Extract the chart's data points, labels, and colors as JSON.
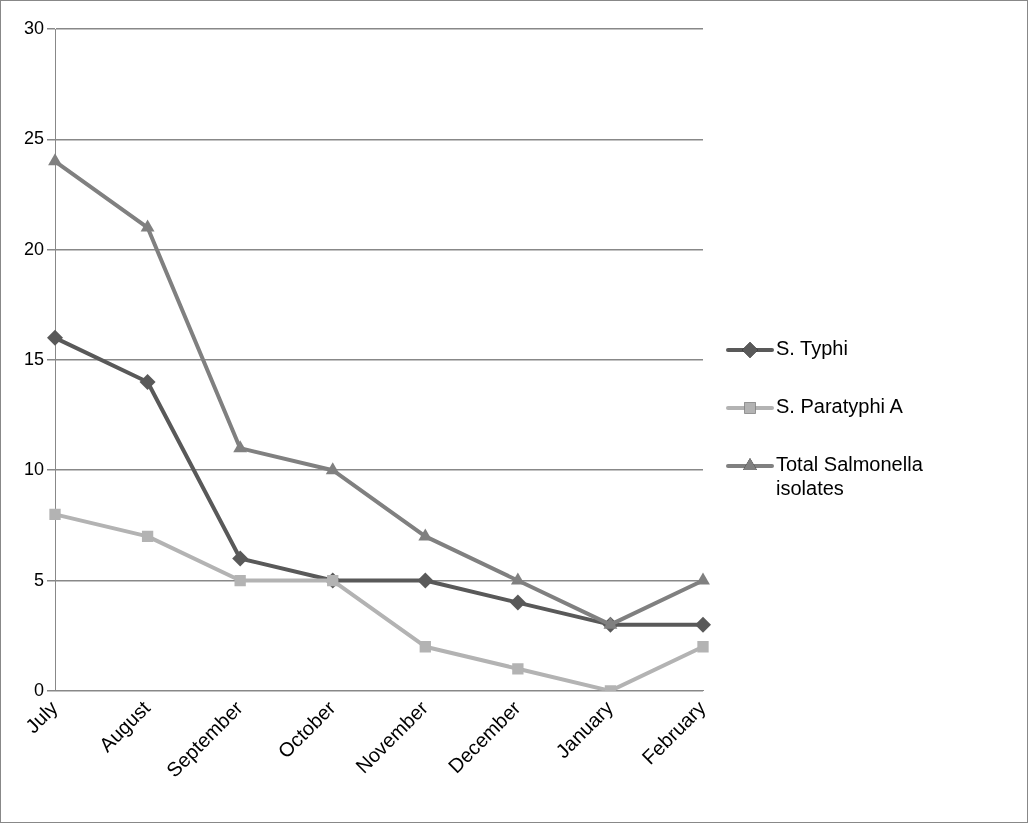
{
  "chart_data": {
    "type": "line",
    "categories": [
      "July",
      "August",
      "September",
      "October",
      "November",
      "December",
      "January",
      "February"
    ],
    "series": [
      {
        "name": "S. Typhi",
        "color": "#595959",
        "marker": "diamond",
        "values": [
          16,
          14,
          6,
          5,
          5,
          4,
          3,
          3
        ]
      },
      {
        "name": "S. Paratyphi A",
        "color": "#b3b3b3",
        "marker": "square",
        "values": [
          8,
          7,
          5,
          5,
          2,
          1,
          0,
          2
        ]
      },
      {
        "name": "Total Salmonella isolates",
        "color": "#808080",
        "marker": "triangle",
        "values": [
          24,
          21,
          11,
          10,
          7,
          5,
          3,
          5
        ]
      }
    ],
    "ylim": [
      0,
      30
    ],
    "yticks": [
      0,
      5,
      10,
      15,
      20,
      25,
      30
    ],
    "grid": "y",
    "legend": "right",
    "line_style": "solid"
  }
}
